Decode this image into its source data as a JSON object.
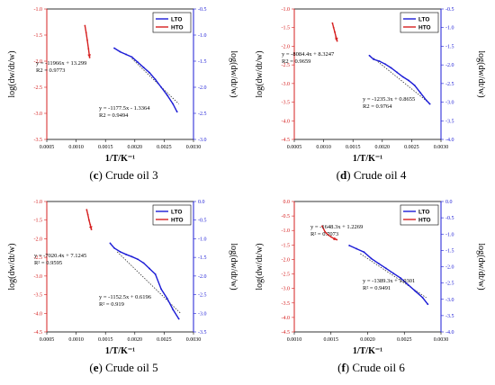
{
  "colors": {
    "lto": "#1b1bd6",
    "hto": "#d62020",
    "fit": "#333333",
    "right_axis": "#1b1bd6",
    "left_axis": "#d62020"
  },
  "chart_data": [
    {
      "type": "line",
      "caption_letter": "c",
      "caption_text": "Crude oil 3",
      "xlabel": "1/T/K⁻¹",
      "ylabel_left": "log(dw/dt/w)",
      "ylabel_right": "log(dw/dt/w)",
      "xlim": [
        0.0005,
        0.003
      ],
      "x_ticks": [
        "0.0005",
        "0.0010",
        "0.0015",
        "0.0020",
        "0.0025",
        "0.0030"
      ],
      "ylim_left": [
        -3.5,
        -1.0
      ],
      "y_ticks_left": [
        "-1.0",
        "-1.5",
        "-2.0",
        "-2.5",
        "-3.0",
        "-3.5"
      ],
      "ylim_right": [
        -3.0,
        -0.5
      ],
      "y_ticks_right": [
        "-0.5",
        "-1.0",
        "-1.5",
        "-2.0",
        "-2.5",
        "-3.0"
      ],
      "legend": [
        "LTO",
        "HTO"
      ],
      "series": [
        {
          "name": "HTO",
          "axis": "left",
          "x": [
            0.00115,
            0.00117,
            0.00119,
            0.00121,
            0.00123
          ],
          "y": [
            -1.32,
            -1.45,
            -1.6,
            -1.76,
            -1.93
          ]
        },
        {
          "name": "LTO",
          "axis": "right",
          "x": [
            0.00165,
            0.00175,
            0.00185,
            0.00195,
            0.00205,
            0.00215,
            0.00225,
            0.00235,
            0.00245,
            0.00255,
            0.00265,
            0.00272
          ],
          "y": [
            -1.25,
            -1.32,
            -1.37,
            -1.42,
            -1.52,
            -1.62,
            -1.72,
            -1.85,
            -2.0,
            -2.15,
            -2.32,
            -2.47
          ]
        }
      ],
      "fit_line": {
        "axis": "right",
        "x": [
          0.00195,
          0.00275
        ],
        "y": [
          -1.45,
          -2.32
        ]
      },
      "annotations": [
        {
          "eq": "y = -11966x + 13.299",
          "r2": "R2 = 0.9773"
        },
        {
          "eq": "y = -1177.5x - 1.3364",
          "r2": "R2 = 0.9494"
        }
      ]
    },
    {
      "type": "line",
      "caption_letter": "d",
      "caption_text": "Crude oil 4",
      "xlabel": "1/T/K⁻¹",
      "ylabel_left": "log(dw/dt/w)",
      "ylabel_right": "log(dw/dt/w)",
      "xlim": [
        0.0005,
        0.003
      ],
      "x_ticks": [
        "0.0005",
        "0.0010",
        "0.0015",
        "0.0020",
        "0.0025",
        "0.0030"
      ],
      "ylim_left": [
        -4.5,
        -1.0
      ],
      "y_ticks_left": [
        "-1.0",
        "-1.5",
        "-2.0",
        "-2.5",
        "-3.0",
        "-3.5",
        "-4.0",
        "-4.5"
      ],
      "ylim_right": [
        -4.0,
        -0.5
      ],
      "y_ticks_right": [
        "-0.5",
        "-1.0",
        "-1.5",
        "-2.0",
        "-2.5",
        "-3.0",
        "-3.5",
        "-4.0"
      ],
      "legend": [
        "LTO",
        "HTO"
      ],
      "series": [
        {
          "name": "HTO",
          "axis": "left",
          "x": [
            0.00115,
            0.00117,
            0.00119,
            0.00121,
            0.00123
          ],
          "y": [
            -1.38,
            -1.5,
            -1.62,
            -1.75,
            -1.86
          ]
        },
        {
          "name": "LTO",
          "axis": "right",
          "x": [
            0.00178,
            0.00185,
            0.00195,
            0.00205,
            0.00215,
            0.00225,
            0.00235,
            0.00245,
            0.00255,
            0.00265,
            0.00275,
            0.00281
          ],
          "y": [
            -1.75,
            -1.85,
            -1.9,
            -1.98,
            -2.08,
            -2.2,
            -2.32,
            -2.42,
            -2.55,
            -2.75,
            -2.95,
            -3.05
          ]
        }
      ],
      "fit_line": {
        "axis": "right",
        "x": [
          0.00185,
          0.00282
        ],
        "y": [
          -1.82,
          -3.05
        ]
      },
      "annotations": [
        {
          "eq": "y = -8084.4x + 8.3247",
          "r2": "R2 = 0.9659"
        },
        {
          "eq": "y = -1235.3x + 0.8655",
          "r2": "R2 = 0.9764"
        }
      ]
    },
    {
      "type": "line",
      "caption_letter": "e",
      "caption_text": "Crude oil 5",
      "xlabel": "1/T/K⁻¹",
      "ylabel_left": "log(dw/dt/w)",
      "ylabel_right": "log(dw/dt/w)",
      "xlim": [
        0.0005,
        0.003
      ],
      "x_ticks": [
        "0.0005",
        "0.0010",
        "0.0015",
        "0.0020",
        "0.0025",
        "0.0030"
      ],
      "ylim_left": [
        -4.5,
        -1.0
      ],
      "y_ticks_left": [
        "-1.0",
        "-1.5",
        "-2.0",
        "-2.5",
        "-3.0",
        "-3.5",
        "-4.0",
        "-4.5"
      ],
      "ylim_right": [
        -3.5,
        0.0
      ],
      "y_ticks_right": [
        "0.0",
        "-0.5",
        "-1.0",
        "-1.5",
        "-2.0",
        "-2.5",
        "-3.0",
        "-3.5"
      ],
      "legend": [
        "LTO",
        "HTO"
      ],
      "series": [
        {
          "name": "HTO",
          "axis": "left",
          "x": [
            0.00118,
            0.0012,
            0.00122,
            0.00124,
            0.00126
          ],
          "y": [
            -1.22,
            -1.35,
            -1.5,
            -1.62,
            -1.75
          ]
        },
        {
          "name": "LTO",
          "axis": "right",
          "x": [
            0.00158,
            0.00165,
            0.00175,
            0.00185,
            0.00195,
            0.00205,
            0.00215,
            0.00225,
            0.00235,
            0.00245,
            0.00255,
            0.00265,
            0.00275
          ],
          "y": [
            -1.12,
            -1.25,
            -1.35,
            -1.42,
            -1.48,
            -1.55,
            -1.65,
            -1.8,
            -1.95,
            -2.35,
            -2.6,
            -2.9,
            -3.15
          ]
        }
      ],
      "fit_line": {
        "axis": "right",
        "x": [
          0.0017,
          0.00278
        ],
        "y": [
          -1.35,
          -3.0
        ]
      },
      "annotations": [
        {
          "eq": "y = -7020.4x + 7.1245",
          "r2": "R² = 0.9595"
        },
        {
          "eq": "y = -1152.5x + 0.6196",
          "r2": "R² = 0.919"
        }
      ]
    },
    {
      "type": "line",
      "caption_letter": "f",
      "caption_text": "Crude oil 6",
      "xlabel": "1/T/K⁻¹",
      "ylabel_left": "log(dw/dt/w)",
      "ylabel_right": "log(dw/dt/w)",
      "xlim": [
        0.001,
        0.003
      ],
      "x_ticks": [
        "0.0010",
        "0.0015",
        "0.0020",
        "0.0025",
        "0.0030"
      ],
      "ylim_left": [
        -4.5,
        0.0
      ],
      "y_ticks_left": [
        "0.0",
        "-0.5",
        "-1.0",
        "-1.5",
        "-2.0",
        "-2.5",
        "-3.0",
        "-3.5",
        "-4.0",
        "-4.5"
      ],
      "ylim_right": [
        -4.0,
        0.0
      ],
      "y_ticks_right": [
        "0.0",
        "-0.5",
        "-1.0",
        "-1.5",
        "-2.0",
        "-2.5",
        "-3.0",
        "-3.5",
        "-4.0"
      ],
      "legend": [
        "LTO",
        "HTO"
      ],
      "series": [
        {
          "name": "HTO",
          "axis": "left",
          "x": [
            0.00138,
            0.00142,
            0.00146,
            0.0015,
            0.00154,
            0.00158
          ],
          "y": [
            -0.85,
            -1.05,
            -1.15,
            -1.22,
            -1.28,
            -1.32
          ]
        },
        {
          "name": "LTO",
          "axis": "right",
          "x": [
            0.00175,
            0.00185,
            0.00195,
            0.00205,
            0.00215,
            0.00225,
            0.00235,
            0.00245,
            0.00255,
            0.00265,
            0.00275,
            0.00282
          ],
          "y": [
            -1.35,
            -1.45,
            -1.55,
            -1.75,
            -1.9,
            -2.05,
            -2.2,
            -2.35,
            -2.55,
            -2.75,
            -2.95,
            -3.15
          ]
        }
      ],
      "fit_line": {
        "axis": "right",
        "x": [
          0.0019,
          0.0028
        ],
        "y": [
          -1.6,
          -2.95
        ]
      },
      "annotations": [
        {
          "eq": "y = -1648.3x + 1.2269",
          "r2": "R² = 0.7073"
        },
        {
          "eq": "y = -1389.3x + 1.0301",
          "r2": "R² = 0.9491"
        }
      ]
    }
  ]
}
